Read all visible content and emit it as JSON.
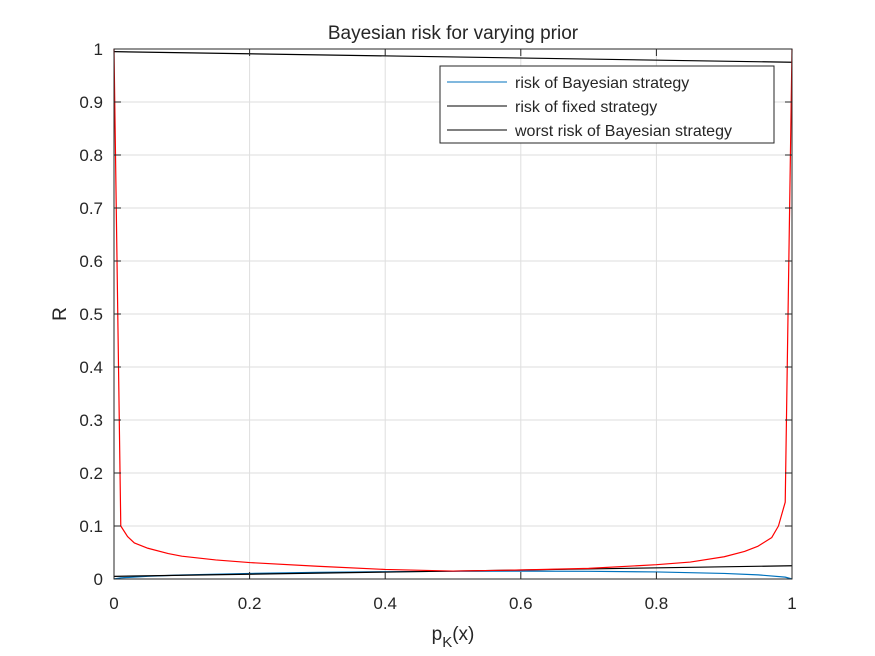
{
  "chart_data": {
    "type": "line",
    "title": "Bayesian risk for varying prior",
    "xlabel": {
      "base": "p",
      "subscript": "K",
      "suffix": "(x)"
    },
    "ylabel": "R",
    "xlim": [
      0,
      1
    ],
    "ylim": [
      0,
      1
    ],
    "xticks": [
      0,
      0.2,
      0.4,
      0.6,
      0.8,
      1
    ],
    "xtick_labels": [
      "0",
      "0.2",
      "0.4",
      "0.6",
      "0.8",
      "1"
    ],
    "yticks": [
      0,
      0.1,
      0.2,
      0.3,
      0.4,
      0.5,
      0.6,
      0.7,
      0.8,
      0.9,
      1
    ],
    "ytick_labels": [
      "0",
      "0.1",
      "0.2",
      "0.3",
      "0.4",
      "0.5",
      "0.6",
      "0.7",
      "0.8",
      "0.9",
      "1"
    ],
    "grid": true,
    "legend": {
      "position": "top-right",
      "entries": [
        {
          "label": "risk of Bayesian strategy",
          "color": "#0072BD"
        },
        {
          "label": "risk of fixed strategy",
          "color": "#000000"
        },
        {
          "label": "worst risk of Bayesian strategy",
          "color": "#000000"
        }
      ]
    },
    "series": [
      {
        "name": "risk of Bayesian strategy",
        "color": "#0072BD",
        "x": [
          0,
          0.01,
          0.05,
          0.1,
          0.2,
          0.3,
          0.4,
          0.5,
          0.6,
          0.7,
          0.8,
          0.9,
          0.95,
          0.99,
          1
        ],
        "y": [
          0,
          0.0022,
          0.0052,
          0.0075,
          0.0105,
          0.0125,
          0.0138,
          0.0145,
          0.0148,
          0.0145,
          0.0133,
          0.0105,
          0.0078,
          0.0035,
          0
        ]
      },
      {
        "name": "risk of fixed strategy",
        "color": "#000000",
        "x": [
          0,
          1
        ],
        "y": [
          0.005,
          0.025
        ]
      },
      {
        "name": "worst risk of Bayesian strategy",
        "color": "#000000",
        "x": [
          0,
          1
        ],
        "y": [
          0.995,
          0.975
        ]
      },
      {
        "color": "#FF0000",
        "x": [
          0,
          0.01,
          0.02,
          0.03,
          0.05,
          0.08,
          0.1,
          0.15,
          0.2,
          0.3,
          0.4,
          0.5,
          0.6,
          0.7,
          0.8,
          0.85,
          0.9,
          0.93,
          0.95,
          0.97,
          0.98,
          0.99,
          1
        ],
        "y": [
          1.0,
          0.1,
          0.08,
          0.068,
          0.058,
          0.048,
          0.043,
          0.036,
          0.031,
          0.024,
          0.018,
          0.015,
          0.017,
          0.02,
          0.027,
          0.032,
          0.042,
          0.052,
          0.062,
          0.078,
          0.1,
          0.145,
          1.0
        ]
      }
    ]
  }
}
